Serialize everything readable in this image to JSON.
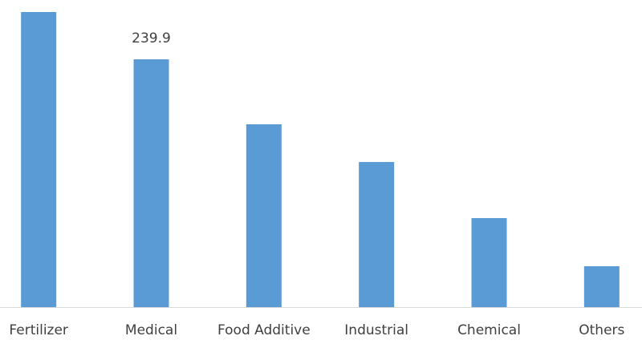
{
  "chart_data": {
    "type": "bar",
    "categories": [
      "Fertilizer",
      "Medical",
      "Food Additive",
      "Industrial",
      "Chemical",
      "Others"
    ],
    "values": [
      285.7,
      239.9,
      177.0,
      140.5,
      86.2,
      39.6
    ],
    "value_labels": [
      null,
      "239.9",
      null,
      null,
      null,
      null
    ],
    "color": "#5b9bd5"
  }
}
